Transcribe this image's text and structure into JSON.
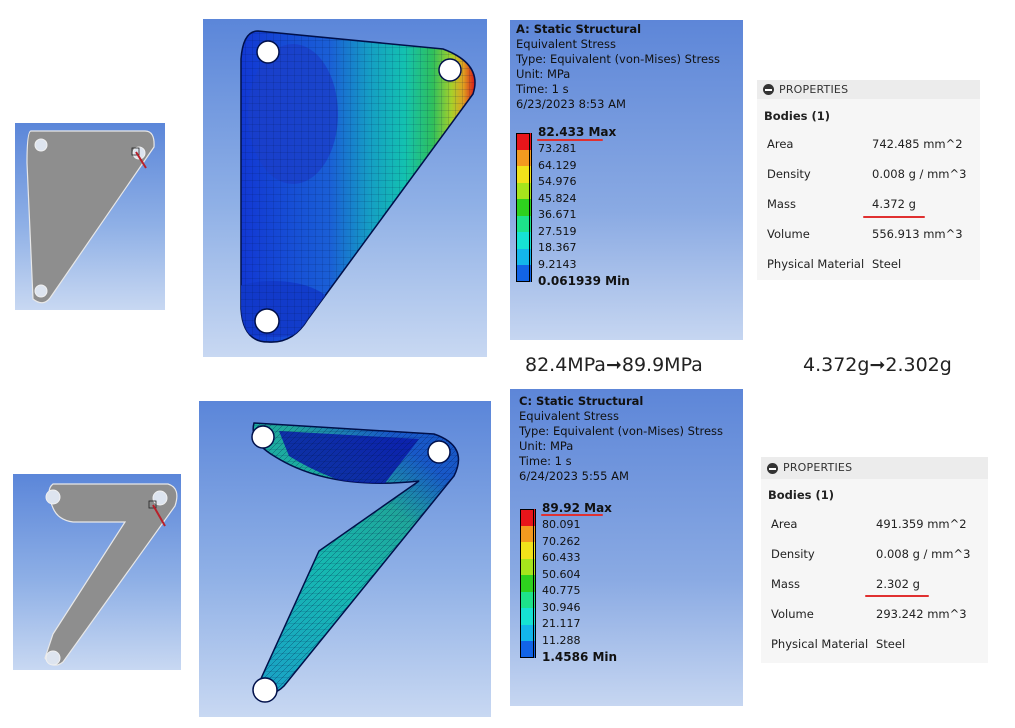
{
  "analysis_a": {
    "title": "A: Static Structural",
    "lines": [
      "Equivalent Stress",
      "Type: Equivalent (von-Mises) Stress",
      "Unit: MPa",
      "Time: 1 s",
      "6/23/2023 8:53 AM"
    ],
    "legend": [
      "82.433 Max",
      "73.281",
      "64.129",
      "54.976",
      "45.824",
      "36.671",
      "27.519",
      "18.367",
      "9.2143",
      "0.061939 Min"
    ]
  },
  "analysis_c": {
    "title": "C: Static Structural",
    "lines": [
      "Equivalent Stress",
      "Type: Equivalent (von-Mises) Stress",
      "Unit: MPa",
      "Time: 1 s",
      "6/24/2023 5:55 AM"
    ],
    "legend": [
      "89.92 Max",
      "80.091",
      "70.262",
      "60.433",
      "50.604",
      "40.775",
      "30.946",
      "21.117",
      "11.288",
      "1.4586 Min"
    ]
  },
  "legend_colors": [
    "#e8151a",
    "#f39a1f",
    "#f1e31a",
    "#a6e51c",
    "#2ed11e",
    "#1de38a",
    "#16e3d3",
    "#13b6ea",
    "#1264e6",
    "#0a1ecf"
  ],
  "captions": {
    "stress": "82.4MPa➞89.9MPa",
    "mass": "4.372g➞2.302g"
  },
  "props_a": {
    "header": "PROPERTIES",
    "bodies": "Bodies (1)",
    "rows": [
      {
        "k": "Area",
        "v": "742.485 mm^2"
      },
      {
        "k": "Density",
        "v": "0.008 g / mm^3"
      },
      {
        "k": "Mass",
        "v": "4.372 g"
      },
      {
        "k": "Volume",
        "v": "556.913 mm^3"
      },
      {
        "k": "Physical Material",
        "v": "Steel"
      }
    ]
  },
  "props_c": {
    "header": "PROPERTIES",
    "bodies": "Bodies (1)",
    "rows": [
      {
        "k": "Area",
        "v": "491.359 mm^2"
      },
      {
        "k": "Density",
        "v": "0.008 g / mm^3"
      },
      {
        "k": "Mass",
        "v": "2.302 g"
      },
      {
        "k": "Volume",
        "v": "293.242 mm^3"
      },
      {
        "k": "Physical Material",
        "v": "Steel"
      }
    ]
  }
}
